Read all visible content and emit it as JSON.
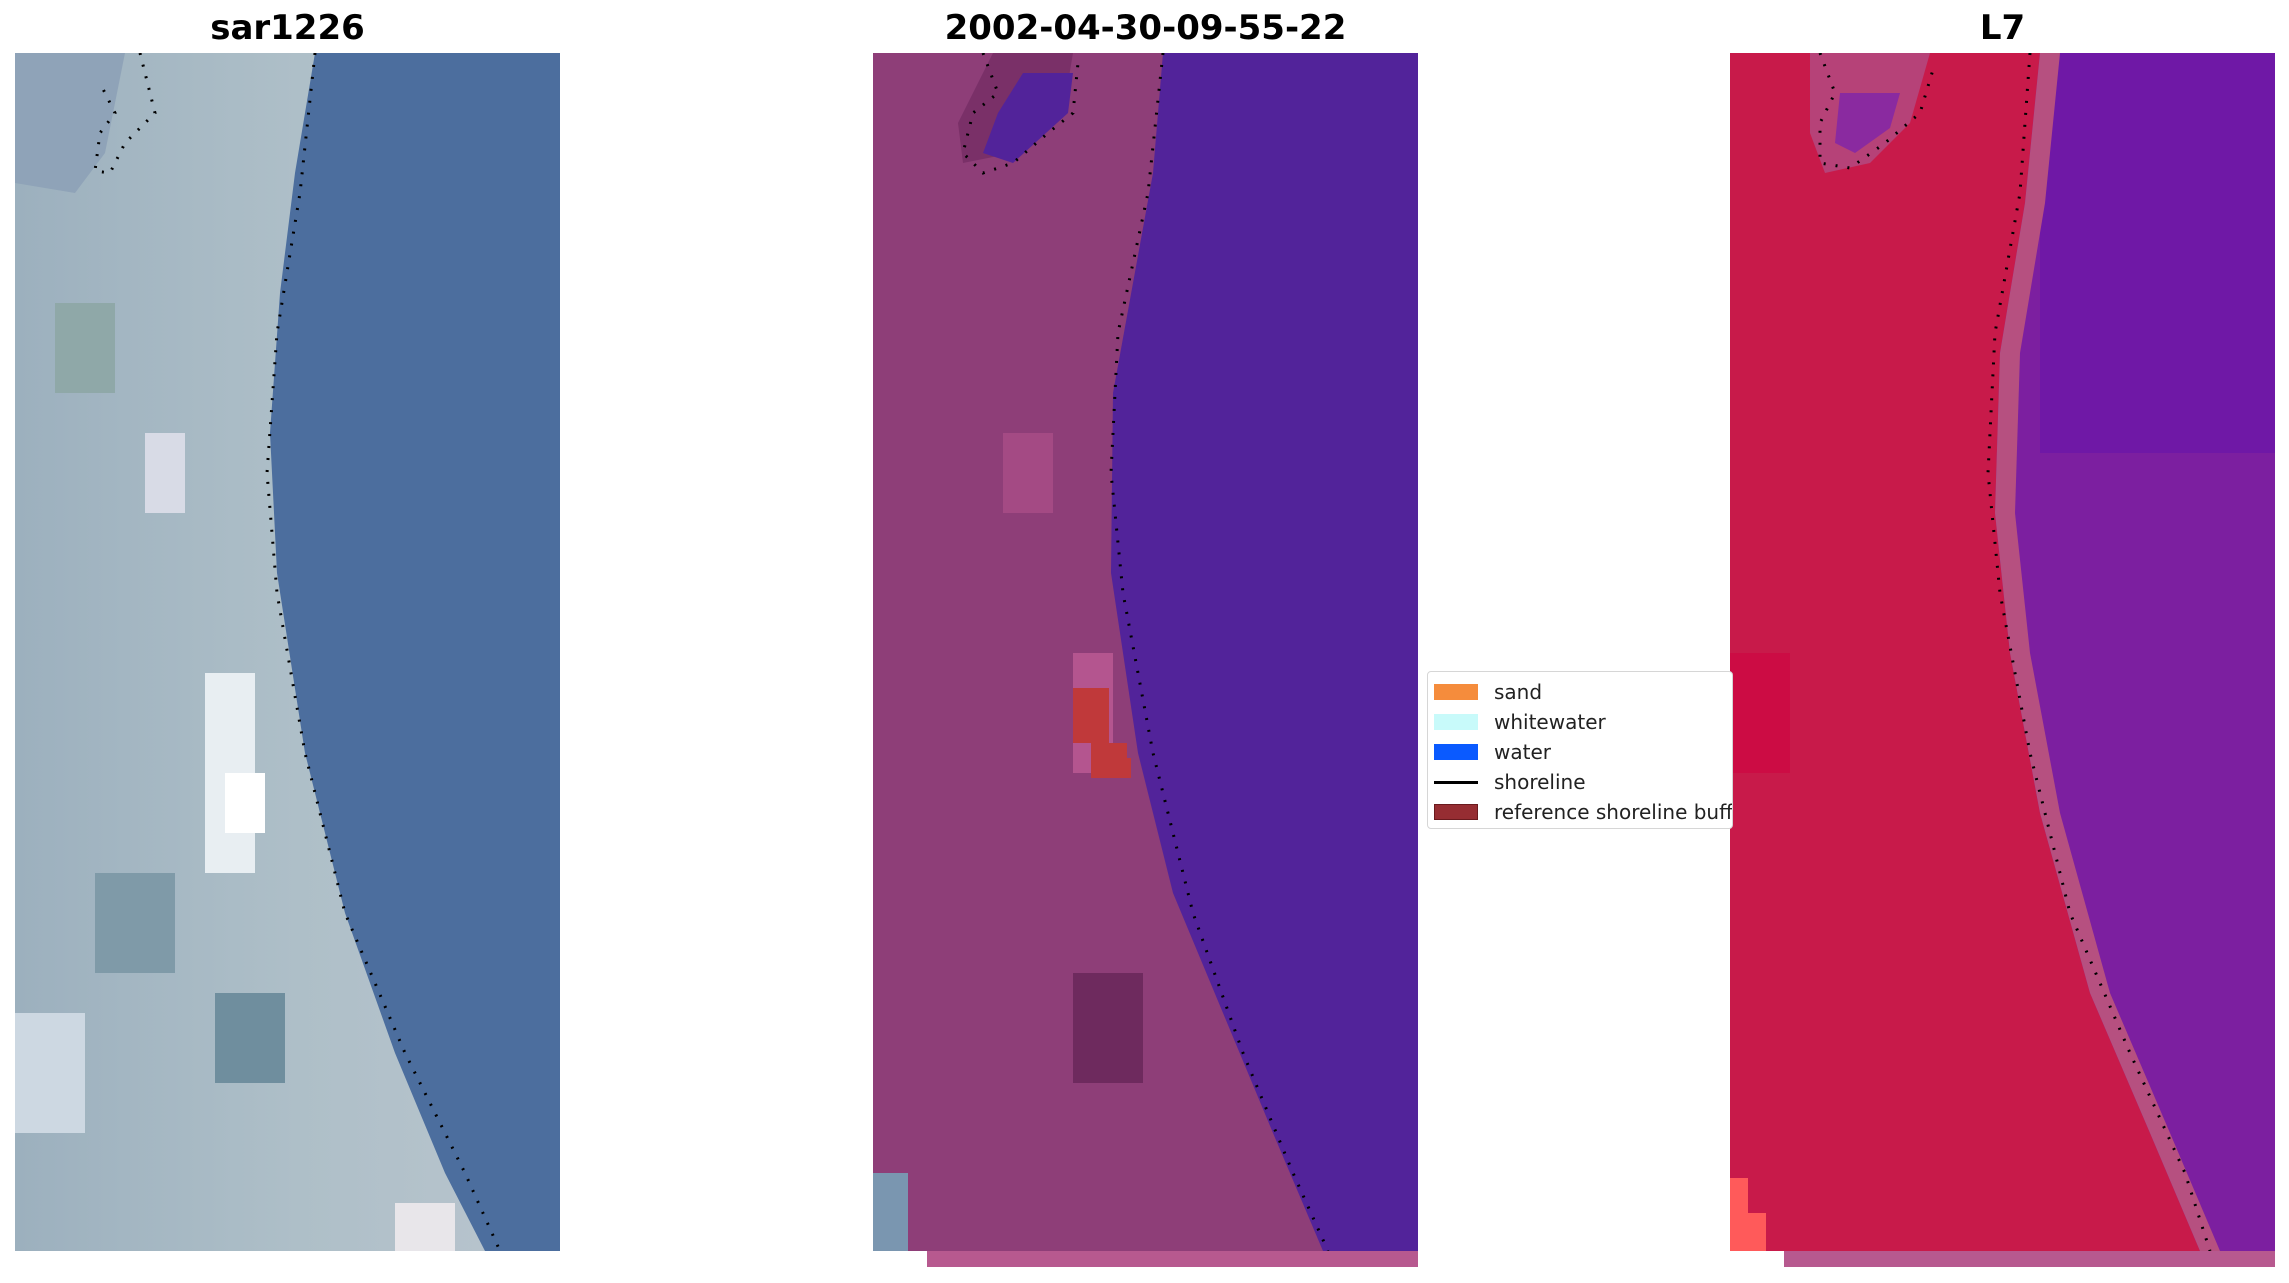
{
  "panels": [
    {
      "title": "sar1226"
    },
    {
      "title": "2002-04-30-09-55-22"
    },
    {
      "title": "L7"
    }
  ],
  "legend": {
    "items": [
      {
        "label": "sand",
        "color": "#f58c3c"
      },
      {
        "label": "whitewater",
        "color": "#c8fafa"
      },
      {
        "label": "water",
        "color": "#0a5aff"
      },
      {
        "label": "shoreline",
        "color": "#000000"
      },
      {
        "label": "reference shoreline buffer",
        "color": "#962d32"
      }
    ]
  },
  "colors": {
    "rgb_water": "#4c6e9e",
    "rgb_land": "#a9b8c4",
    "classified_water": "#52239a",
    "classified_land": "#8e3e78",
    "ndwi_land": "#c81a4a",
    "ndwi_water": "#7c1fa0",
    "bottom_strip": "#b7598f"
  }
}
